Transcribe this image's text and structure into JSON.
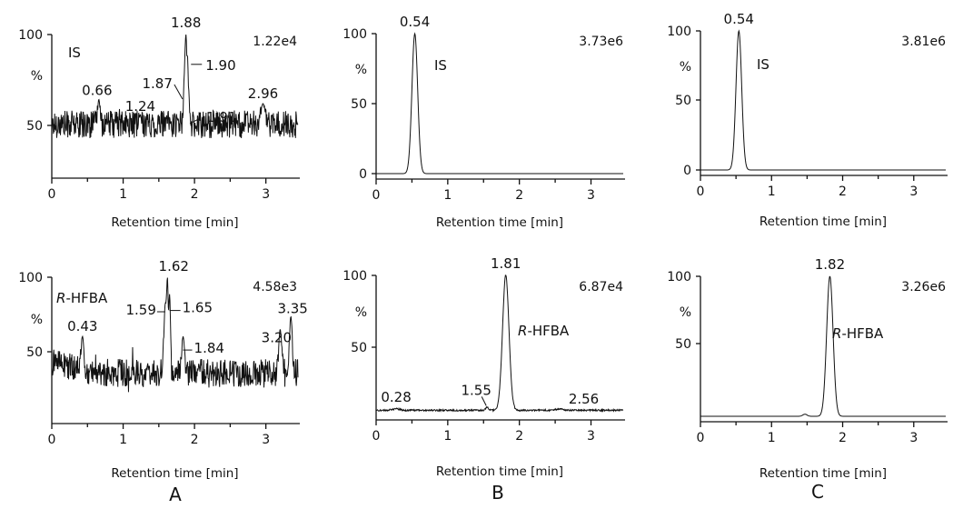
{
  "x_axis_label": "Retention time [min]",
  "panel_labels": [
    "A",
    "B",
    "C"
  ],
  "chart_data": [
    {
      "type": "line",
      "panel": "A",
      "compound": "IS",
      "intensity": "1.22e4",
      "x_ticks": [
        "0",
        "1",
        "2",
        "3"
      ],
      "y_ticks": [
        "100",
        "%",
        "50"
      ],
      "xlim": [
        0,
        3.45
      ],
      "ylim": [
        0,
        100
      ],
      "noise": true,
      "noise_mean": 35,
      "noise_amp": 10,
      "peaks": [
        {
          "rt": 0.66,
          "height": 53,
          "width": 0.018
        },
        {
          "rt": 1.24,
          "height": 42,
          "width": 0.018
        },
        {
          "rt": 1.87,
          "height": 73,
          "width": 0.02
        },
        {
          "rt": 1.88,
          "height": 100,
          "width": 0.012
        },
        {
          "rt": 1.9,
          "height": 85,
          "width": 0.012
        },
        {
          "rt": 1.91,
          "height": 62,
          "width": 0.015
        },
        {
          "rt": 2.96,
          "height": 50,
          "width": 0.03
        }
      ],
      "annotations": [
        {
          "text": "1.88",
          "rt": 1.88
        },
        {
          "text": "1.87",
          "rt": 1.87
        },
        {
          "text": "1.90",
          "rt": 1.9
        },
        {
          "text": "1.91",
          "rt": 1.91
        },
        {
          "text": "0.66",
          "rt": 0.66
        },
        {
          "text": "1.24",
          "rt": 1.24
        },
        {
          "text": "2.96",
          "rt": 2.96
        }
      ]
    },
    {
      "type": "line",
      "panel": "A",
      "compound": "R-HFBA",
      "intensity": "4.58e3",
      "x_ticks": [
        "0",
        "1",
        "2",
        "3"
      ],
      "y_ticks": [
        "100",
        "%",
        "50"
      ],
      "xlim": [
        0,
        3.45
      ],
      "ylim": [
        0,
        100
      ],
      "noise": true,
      "noise_mean": 32,
      "noise_amp": 10,
      "peaks": [
        {
          "rt": 0.43,
          "height": 58,
          "width": 0.02
        },
        {
          "rt": 1.59,
          "height": 80,
          "width": 0.02
        },
        {
          "rt": 1.62,
          "height": 100,
          "width": 0.013
        },
        {
          "rt": 1.65,
          "height": 88,
          "width": 0.013
        },
        {
          "rt": 1.84,
          "height": 58,
          "width": 0.02
        },
        {
          "rt": 3.2,
          "height": 63,
          "width": 0.02
        },
        {
          "rt": 3.35,
          "height": 72,
          "width": 0.02
        }
      ],
      "annotations": [
        {
          "text": "1.62",
          "rt": 1.62
        },
        {
          "text": "0.43",
          "rt": 0.43
        },
        {
          "text": "1.59",
          "rt": 1.59
        },
        {
          "text": "1.65",
          "rt": 1.65
        },
        {
          "text": "1.84",
          "rt": 1.84
        },
        {
          "text": "3.20",
          "rt": 3.2
        },
        {
          "text": "3.35",
          "rt": 3.35
        }
      ]
    },
    {
      "type": "line",
      "panel": "B",
      "compound": "IS",
      "intensity": "3.73e6",
      "x_ticks": [
        "0",
        "1",
        "2",
        "3"
      ],
      "y_ticks": [
        "100",
        "%",
        "50",
        "0"
      ],
      "xlim": [
        0,
        3.45
      ],
      "ylim": [
        0,
        100
      ],
      "noise": false,
      "baseline": 0,
      "peaks": [
        {
          "rt": 0.54,
          "height": 100,
          "width": 0.04
        }
      ],
      "annotations": [
        {
          "text": "0.54",
          "rt": 0.54
        }
      ]
    },
    {
      "type": "line",
      "panel": "B",
      "compound": "R-HFBA",
      "intensity": "6.87e4",
      "x_ticks": [
        "0",
        "1",
        "2",
        "3"
      ],
      "y_ticks": [
        "100",
        "%",
        "50"
      ],
      "xlim": [
        0,
        3.45
      ],
      "ylim": [
        0,
        100
      ],
      "noise": false,
      "baseline": 3,
      "peaks": [
        {
          "rt": 1.81,
          "height": 100,
          "width": 0.045
        },
        {
          "rt": 1.55,
          "height": 5,
          "width": 0.02
        },
        {
          "rt": 0.28,
          "height": 4,
          "width": 0.05
        },
        {
          "rt": 2.56,
          "height": 4,
          "width": 0.05
        }
      ],
      "annotations": [
        {
          "text": "1.81",
          "rt": 1.81
        },
        {
          "text": "0.28",
          "rt": 0.28
        },
        {
          "text": "1.55",
          "rt": 1.55
        },
        {
          "text": "2.56",
          "rt": 2.56
        }
      ]
    },
    {
      "type": "line",
      "panel": "C",
      "compound": "IS",
      "intensity": "3.81e6",
      "x_ticks": [
        "0",
        "1",
        "2",
        "3"
      ],
      "y_ticks": [
        "100",
        "%",
        "50",
        "0"
      ],
      "xlim": [
        0,
        3.45
      ],
      "ylim": [
        0,
        100
      ],
      "noise": false,
      "baseline": 0,
      "peaks": [
        {
          "rt": 0.54,
          "height": 100,
          "width": 0.04
        }
      ],
      "annotations": [
        {
          "text": "0.54",
          "rt": 0.54
        }
      ]
    },
    {
      "type": "line",
      "panel": "C",
      "compound": "R-HFBA",
      "intensity": "3.26e6",
      "x_ticks": [
        "0",
        "1",
        "2",
        "3"
      ],
      "y_ticks": [
        "100",
        "%",
        "50"
      ],
      "xlim": [
        0,
        3.45
      ],
      "ylim": [
        0,
        100
      ],
      "noise": false,
      "baseline": 0,
      "peaks": [
        {
          "rt": 1.82,
          "height": 100,
          "width": 0.045
        },
        {
          "rt": 1.47,
          "height": 1.5,
          "width": 0.03
        }
      ],
      "annotations": [
        {
          "text": "1.82",
          "rt": 1.82
        }
      ]
    }
  ]
}
